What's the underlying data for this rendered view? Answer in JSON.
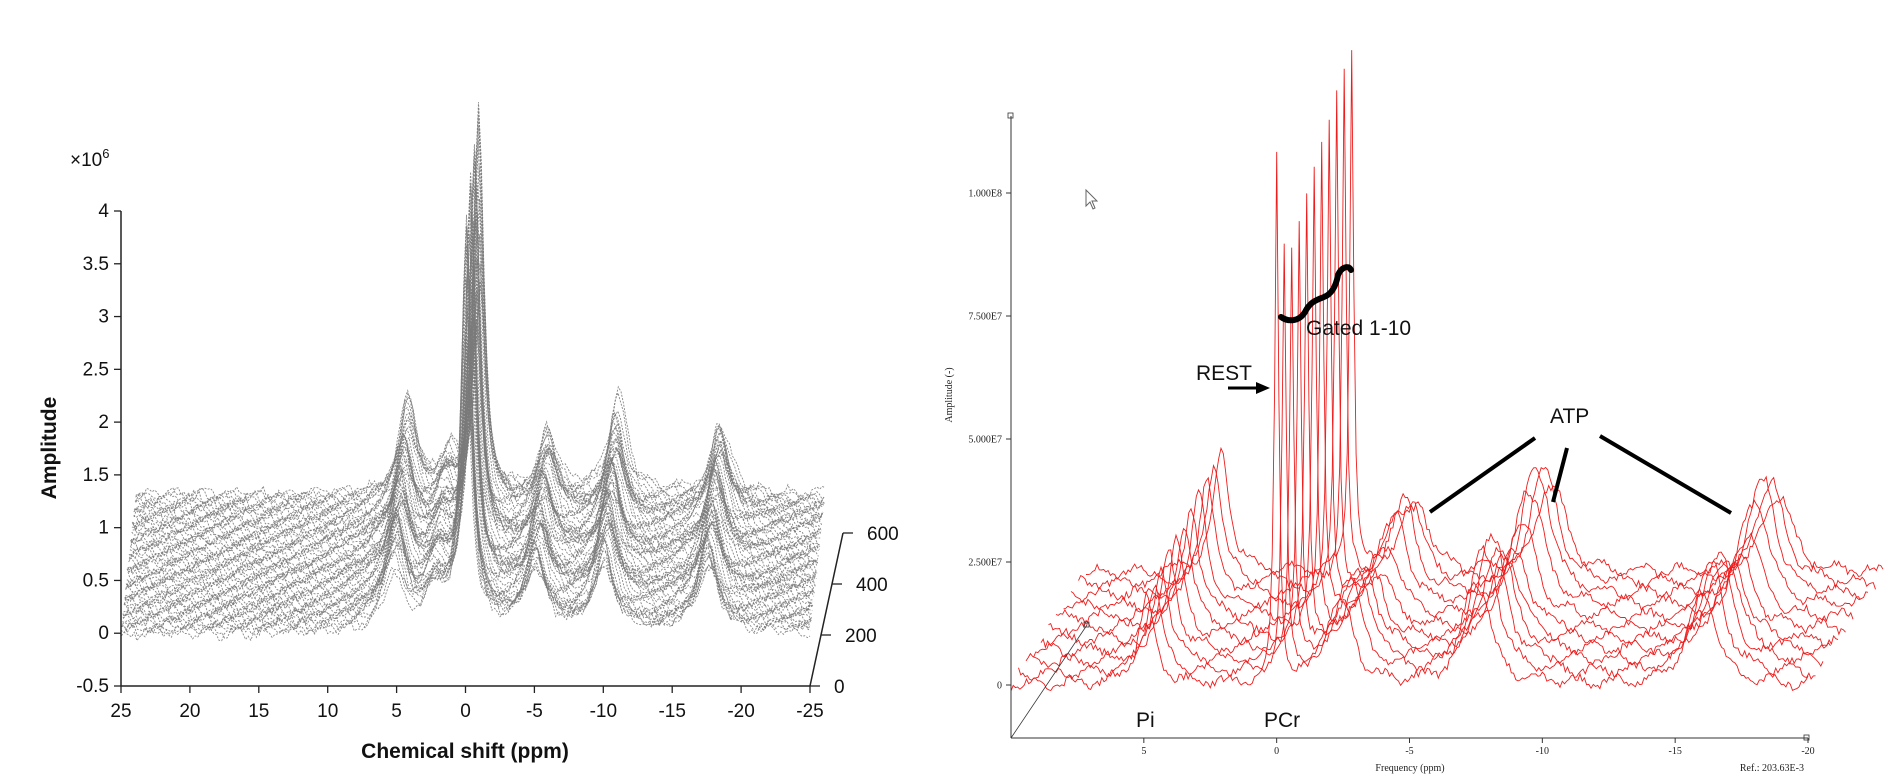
{
  "chart_data": [
    {
      "type": "line",
      "style": "3d-waterfall",
      "color": "#7a7a7a",
      "multiplier": "×10",
      "multiplier_exp": "6",
      "xlabel": "Chemical shift (ppm)",
      "ylabel": "Amplitude",
      "xlim": [
        25,
        -25
      ],
      "ylim": [
        -0.5,
        4
      ],
      "zlim": [
        0,
        600
      ],
      "x_ticks": [
        "25",
        "20",
        "15",
        "10",
        "5",
        "0",
        "-5",
        "-10",
        "-15",
        "-20",
        "-25"
      ],
      "y_ticks": [
        "-0.5",
        "0",
        "0.5",
        "1",
        "1.5",
        "2",
        "2.5",
        "3",
        "3.5",
        "4"
      ],
      "z_ticks": [
        "0",
        "200",
        "400",
        "600"
      ],
      "peaks": [
        {
          "ppm": 5.2,
          "height": 1.0
        },
        {
          "ppm": 2.3,
          "height": 0.45
        },
        {
          "ppm": 0.0,
          "height": 3.8
        },
        {
          "ppm": -5.0,
          "height": 0.8
        },
        {
          "ppm": -10.0,
          "height": 1.0
        },
        {
          "ppm": -17.5,
          "height": 0.9
        }
      ],
      "num_traces": 60
    },
    {
      "type": "line",
      "style": "3d-waterfall",
      "color": "#ee1c1c",
      "xlabel": "Frequency (ppm)",
      "ylabel": "Amplitude (-)",
      "reference": "Ref.: 203.63E-3",
      "xlim": [
        10,
        -20
      ],
      "ylim": [
        0,
        115000000.0
      ],
      "x_ticks": [
        "5",
        "0",
        "-5",
        "-10",
        "-15",
        "-20"
      ],
      "y_ticks": [
        "0",
        "2.500E7",
        "5.000E7",
        "7.500E7",
        "1.000E8"
      ],
      "num_traces": 11,
      "pcr_heights": [
        107000000.0,
        86000000.0,
        84000000.0,
        88000000.0,
        90000000.0,
        93000000.0,
        96000000.0,
        98000000.0,
        100000000.0,
        103000000.0,
        107000000.0
      ],
      "annotations": {
        "gated": "Gated 1-10",
        "rest": "REST",
        "atp": "ATP",
        "pi": "Pi",
        "pcr": "PCr"
      }
    }
  ]
}
